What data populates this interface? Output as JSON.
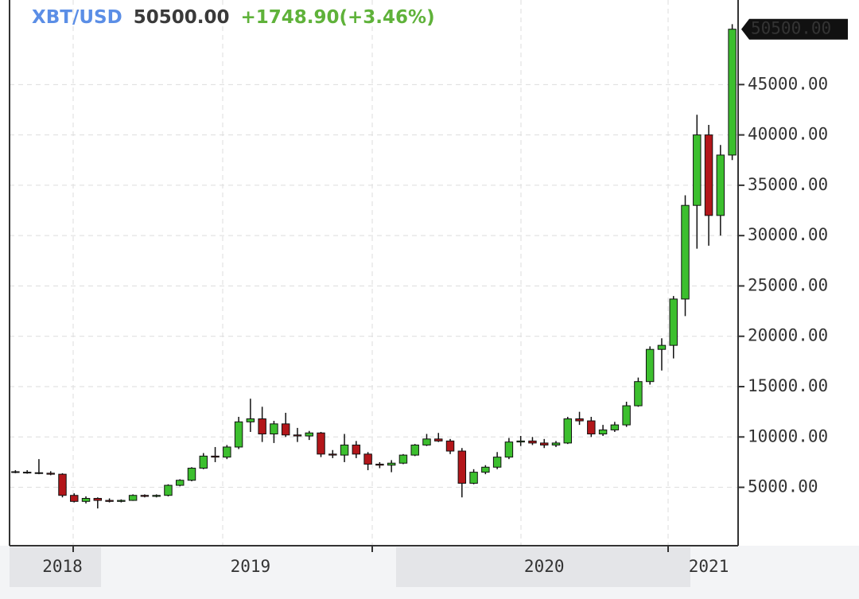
{
  "chart_data": {
    "type": "candlestick",
    "symbol": "XBT/USD",
    "price": "50500.00",
    "change": "+1748.90(+3.46%)",
    "categories": [
      null,
      null,
      null,
      null,
      "2018",
      null,
      null,
      null,
      null,
      null,
      null,
      null,
      null,
      null,
      null,
      null,
      null,
      null,
      null,
      null,
      "2019",
      null,
      null,
      null,
      null,
      null,
      null,
      null,
      null,
      null,
      null,
      null,
      null,
      null,
      null,
      null,
      null,
      null,
      null,
      null,
      null,
      null,
      null,
      null,
      null,
      "2020",
      null,
      null,
      null,
      null,
      null,
      null,
      null,
      null,
      null,
      null,
      null,
      null,
      null,
      "2021",
      null,
      null
    ],
    "open": [
      6550,
      6500,
      6450,
      6400,
      6300,
      4200,
      3600,
      3900,
      3700,
      3600,
      3700,
      4200,
      4100,
      4200,
      5200,
      5700,
      6900,
      8100,
      8000,
      9000,
      11500,
      11800,
      10300,
      11300,
      10200,
      10100,
      10400,
      8300,
      8200,
      9200,
      8300,
      7300,
      7200,
      7400,
      8200,
      9200,
      9800,
      9600,
      8600,
      5400,
      6500,
      7000,
      8000,
      9500,
      9600,
      9400,
      9200,
      9400,
      11800,
      11600,
      10300,
      10700,
      11200,
      13100,
      15500,
      18700,
      19100,
      23700,
      33000,
      40000,
      32000,
      38000
    ],
    "high": [
      6700,
      6700,
      7800,
      6600,
      6400,
      4400,
      4100,
      4000,
      3900,
      3800,
      4300,
      4300,
      4300,
      5300,
      5800,
      7000,
      8400,
      9000,
      9200,
      12000,
      13800,
      13000,
      11600,
      12400,
      10900,
      10600,
      10500,
      8700,
      10300,
      9600,
      8500,
      7500,
      7700,
      8300,
      9300,
      10300,
      10400,
      9800,
      8900,
      6800,
      7200,
      8500,
      9900,
      10100,
      10000,
      9800,
      9600,
      12000,
      12500,
      12000,
      11200,
      11500,
      13500,
      15900,
      19000,
      19800,
      24000,
      34000,
      42000,
      41000,
      39000,
      51000
    ],
    "low": [
      6400,
      6350,
      6300,
      6200,
      4000,
      3500,
      3400,
      2900,
      3500,
      3500,
      3650,
      4000,
      4000,
      4100,
      5100,
      5600,
      6800,
      7500,
      7800,
      8800,
      10500,
      9500,
      9400,
      10000,
      9500,
      9700,
      8000,
      7900,
      7500,
      7900,
      6700,
      6900,
      6500,
      7300,
      8100,
      9100,
      9500,
      8300,
      4000,
      5300,
      6300,
      6800,
      7800,
      9100,
      9200,
      8900,
      9000,
      9300,
      11200,
      10000,
      10100,
      10500,
      11000,
      13000,
      15200,
      16600,
      17800,
      22000,
      28700,
      29000,
      30000,
      37500
    ],
    "close": [
      6500,
      6450,
      6400,
      6300,
      4200,
      3600,
      3900,
      3700,
      3600,
      3700,
      4200,
      4100,
      4200,
      5200,
      5700,
      6900,
      8100,
      8000,
      9000,
      11500,
      11800,
      10300,
      11300,
      10200,
      10100,
      10400,
      8300,
      8200,
      9200,
      8300,
      7300,
      7200,
      7400,
      8200,
      9200,
      9800,
      9600,
      8600,
      5400,
      6500,
      7000,
      8000,
      9500,
      9600,
      9400,
      9200,
      9400,
      11800,
      11600,
      10300,
      10700,
      11200,
      13100,
      15500,
      18700,
      19100,
      23700,
      33000,
      40000,
      32000,
      38000,
      50500
    ],
    "up_color": "#3cbf2e",
    "down_color": "#b3161a",
    "ylim": [
      -800,
      53400
    ],
    "yticks": [
      {
        "value": 5000,
        "label": "5000.00"
      },
      {
        "value": 10000,
        "label": "10000.00"
      },
      {
        "value": 15000,
        "label": "15000.00"
      },
      {
        "value": 20000,
        "label": "20000.00"
      },
      {
        "value": 25000,
        "label": "25000.00"
      },
      {
        "value": 30000,
        "label": "30000.00"
      },
      {
        "value": 35000,
        "label": "35000.00"
      },
      {
        "value": 40000,
        "label": "40000.00"
      },
      {
        "value": 45000,
        "label": "45000.00"
      }
    ],
    "grid": true
  }
}
